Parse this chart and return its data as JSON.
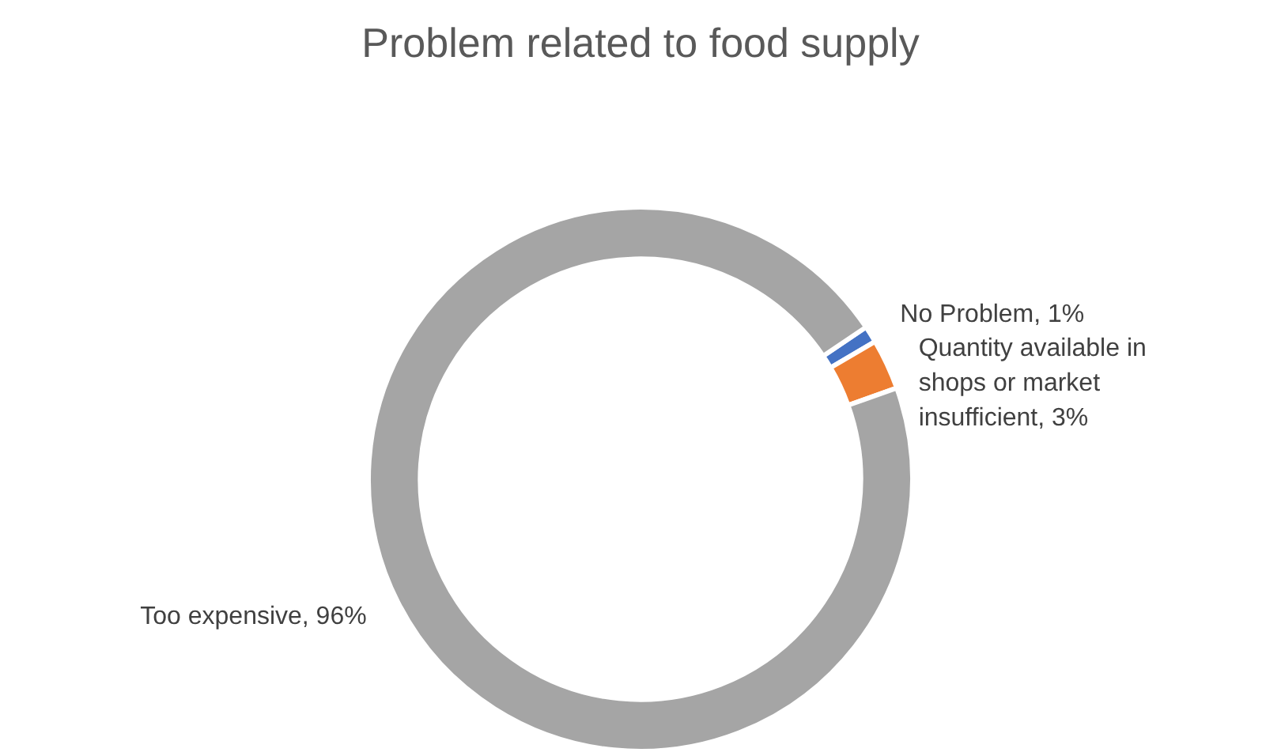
{
  "chart_data": {
    "type": "donut",
    "title": "Problem related to food supply",
    "categories": [
      "No Problem",
      "Quantity available in shops or market insufficient",
      "Too expensive"
    ],
    "values": [
      1,
      3,
      96
    ],
    "colors": [
      "#4472c4",
      "#ed7d31",
      "#a5a5a5"
    ],
    "value_labels": [
      "1%",
      "3%",
      "96%"
    ]
  }
}
